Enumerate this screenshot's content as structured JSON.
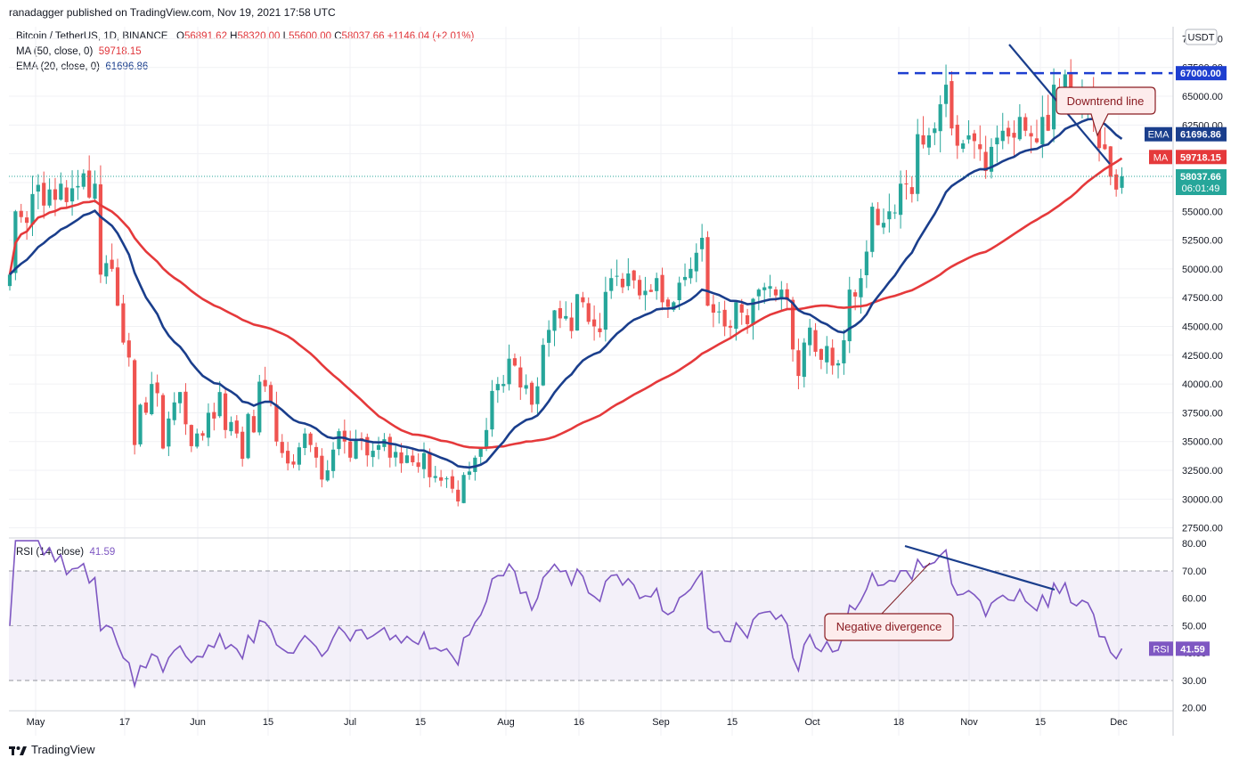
{
  "header": {
    "publisher": "ranadagger published on TradingView.com, Nov 19, 2021 17:58 UTC"
  },
  "legend": {
    "symbol": "Bitcoin / TetherUS, 1D, BINANCE",
    "o_label": "O",
    "o_value": "56891.62",
    "h_label": "H",
    "h_value": "58320.00",
    "l_label": "L",
    "l_value": "55600.00",
    "c_label": "C",
    "c_value": "58037.66",
    "change": "+1146.04 (+2.01%)",
    "ma_label": "MA (50, close, 0)",
    "ma_value": "59718.15",
    "ema_label": "EMA (20, close, 0)",
    "ema_value": "61696.86",
    "rsi_label": "RSI (14, close)",
    "rsi_value": "41.59"
  },
  "currency": "USDT",
  "price_axis": {
    "ticks": [
      "70000.00",
      "67500.00",
      "65000.00",
      "62500.00",
      "60000.00",
      "57500.00",
      "55000.00",
      "52500.00",
      "50000.00",
      "47500.00",
      "45000.00",
      "42500.00",
      "40000.00",
      "37500.00",
      "35000.00",
      "32500.00",
      "30000.00",
      "27500.00"
    ]
  },
  "price_labels": {
    "level": "67000.00",
    "ema_tag": "EMA",
    "ema_value": "61696.86",
    "ma_tag": "MA",
    "ma_value": "59718.15",
    "last_price": "58037.66",
    "countdown": "06:01:49"
  },
  "rsi_axis": {
    "ticks": [
      "80.00",
      "70.00",
      "60.00",
      "50.00",
      "40.00",
      "30.00",
      "20.00"
    ],
    "tag": "RSI",
    "value": "41.59"
  },
  "time_axis": {
    "ticks": [
      "May",
      "17",
      "Jun",
      "15",
      "Jul",
      "15",
      "Aug",
      "16",
      "Sep",
      "15",
      "Oct",
      "18",
      "Nov",
      "15",
      "Dec"
    ]
  },
  "annotations": {
    "downtrend": "Downtrend line",
    "divergence": "Negative divergence"
  },
  "footer": {
    "brand": "TradingView"
  },
  "colors": {
    "ma": "#e5393b",
    "ema": "#1a3e8c",
    "rsi": "#7e57c2",
    "up": "#26a69a",
    "down": "#ef5350",
    "level": "#1e3fd0"
  },
  "chart_data": {
    "type": "candlestick",
    "symbol": "BTC/USDT",
    "interval": "1D",
    "ylim": [
      26500,
      71000
    ],
    "rsi_ylim": [
      18,
      82
    ],
    "rsi_bands": [
      30,
      70
    ],
    "resistance_level": 67000,
    "x_ticks": [
      "May",
      "17",
      "Jun",
      "15",
      "Jul",
      "15",
      "Aug",
      "16",
      "Sep",
      "15",
      "Oct",
      "18",
      "Nov",
      "15",
      "Dec"
    ],
    "close": [
      49500,
      55000,
      54500,
      54000,
      56500,
      57300,
      55500,
      56900,
      56000,
      57400,
      55800,
      57000,
      57200,
      58300,
      56200,
      57400,
      49500,
      50500,
      50000,
      46800,
      43600,
      42300,
      34700,
      38200,
      37500,
      40000,
      39200,
      34400,
      37000,
      38400,
      39300,
      36500,
      34600,
      35700,
      35500,
      37500,
      37000,
      39300,
      36000,
      36700,
      35700,
      33500,
      37400,
      35800,
      40200,
      39800,
      38400,
      35000,
      34000,
      33100,
      33000,
      34500,
      35700,
      34700,
      33600,
      31700,
      32500,
      34300,
      35900,
      35000,
      33600,
      35100,
      35200,
      33800,
      34200,
      34700,
      35200,
      33600,
      34100,
      33100,
      33800,
      33200,
      32800,
      34000,
      31900,
      32000,
      31600,
      31800,
      30900,
      29800,
      32100,
      32400,
      33600,
      34400,
      36000,
      39400,
      40000,
      40000,
      42200,
      41600,
      39700,
      39900,
      38200,
      39800,
      43400,
      44700,
      46400,
      45700,
      45900,
      44600,
      47800,
      47100,
      45400,
      45000,
      44500,
      48000,
      49200,
      49400,
      48400,
      49600,
      49000,
      47700,
      48100,
      48000,
      49200,
      47100,
      46700,
      47100,
      48800,
      49300,
      50000,
      51400,
      52700,
      46800,
      46200,
      46300,
      45000,
      44900,
      47100,
      46200,
      45200,
      47400,
      48200,
      48400,
      48500,
      47700,
      48200,
      47300,
      43000,
      40700,
      43600,
      44900,
      42800,
      42100,
      43300,
      41600,
      41800,
      43800,
      48200,
      47600,
      49200,
      51500,
      55400,
      53800,
      54000,
      55000,
      54900,
      57400,
      57400,
      56500,
      61700,
      60800,
      61600,
      62200,
      64300,
      66000,
      62200,
      60700,
      60900,
      61600,
      61100,
      60400,
      58500,
      60600,
      61400,
      62000,
      61500,
      61400,
      63200,
      62000,
      61500,
      61000,
      63200,
      62000,
      66000,
      64900,
      66900,
      64600,
      64200,
      65100,
      64800,
      63500,
      60500,
      60400,
      58000,
      56890,
      58037
    ]
  }
}
